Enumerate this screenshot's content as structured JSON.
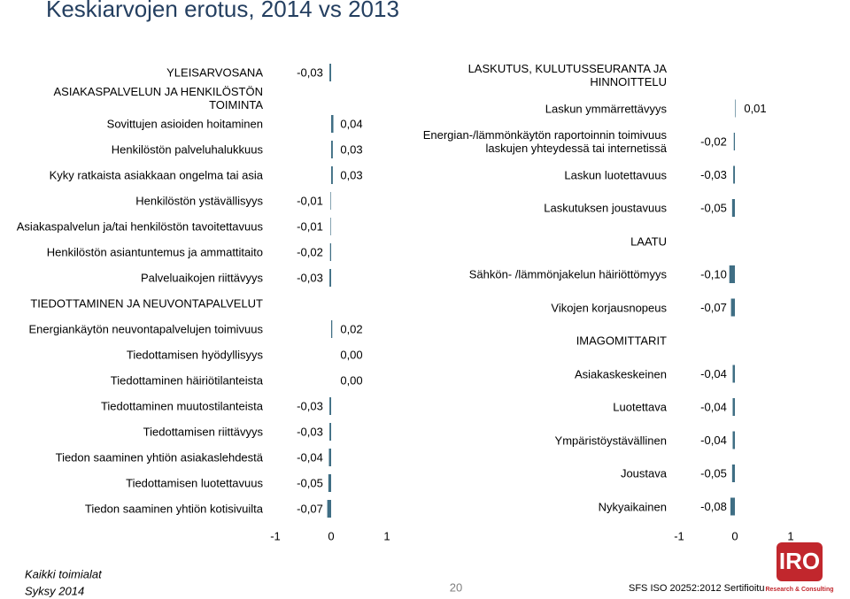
{
  "page_title": "Keskiarvojen erotus, 2014 vs 2013",
  "chart_data": [
    {
      "type": "bar",
      "orientation": "horizontal",
      "color": "#3f6e84",
      "categories": [
        "YLEISARVOSANA",
        "ASIAKASPALVELUN JA HENKILÖSTÖN TOIMINTA",
        "Sovittujen asioiden hoitaminen",
        "Henkilöstön palveluhalukkuus",
        "Kyky ratkaista asiakkaan ongelma tai asia",
        "Henkilöstön ystävällisyys",
        "Asiakaspalvelun ja/tai henkilöstön tavoitettavuus",
        "Henkilöstön asiantuntemus ja ammattitaito",
        "Palveluaikojen riittävyys",
        "TIEDOTTAMINEN JA NEUVONTAPALVELUT",
        "Energiankäytön neuvontapalvelujen toimivuus",
        "Tiedottamisen hyödyllisyys",
        "Tiedottaminen häiriötilanteista",
        "Tiedottaminen muutostilanteista",
        "Tiedottamisen riittävyys",
        "Tiedon saaminen yhtiön asiakaslehdestä",
        "Tiedottamisen luotettavuus",
        "Tiedon saaminen yhtiön kotisivuilta"
      ],
      "values": [
        -0.03,
        null,
        0.04,
        0.03,
        0.03,
        -0.01,
        -0.01,
        -0.02,
        -0.03,
        null,
        0.02,
        0.0,
        0.0,
        -0.03,
        -0.03,
        -0.04,
        -0.05,
        -0.07
      ],
      "value_labels": [
        "-0,03",
        null,
        "0,04",
        "0,03",
        "0,03",
        "-0,01",
        "-0,01",
        "-0,02",
        "-0,03",
        null,
        "0,02",
        "0,00",
        "0,00",
        "-0,03",
        "-0,03",
        "-0,04",
        "-0,05",
        "-0,07"
      ],
      "xlim": [
        -1,
        1
      ],
      "xticks": [
        -1,
        0,
        1
      ]
    },
    {
      "type": "bar",
      "orientation": "horizontal",
      "color": "#3f6e84",
      "categories": [
        "LASKUTUS, KULUTUSSEURANTA JA HINNOITTELU",
        "Laskun ymmärrettävyys",
        "Energian-/lämmönkäytön raportoinnin toimivuus laskujen yhteydessä tai internetissä",
        "Laskun luotettavuus",
        "Laskutuksen joustavuus",
        "LAATU",
        "Sähkön- /lämmönjakelun häiriöttömyys",
        "Vikojen korjausnopeus",
        "IMAGOMITTARIT",
        "Asiakaskeskeinen",
        "Luotettava",
        "Ympäristöystävällinen",
        "Joustava",
        "Nykyaikainen"
      ],
      "values": [
        null,
        0.01,
        -0.02,
        -0.03,
        -0.05,
        null,
        -0.1,
        -0.07,
        null,
        -0.04,
        -0.04,
        -0.04,
        -0.05,
        -0.08
      ],
      "value_labels": [
        null,
        "0,01",
        "-0,02",
        "-0,03",
        "-0,05",
        null,
        "-0,10",
        "-0,07",
        null,
        "-0,04",
        "-0,04",
        "-0,04",
        "-0,05",
        "-0,08"
      ],
      "xlim": [
        -1,
        1
      ],
      "xticks": [
        -1,
        0,
        1
      ]
    }
  ],
  "footer": {
    "lines": [
      "Kaikki toimialat",
      "Syksy 2014"
    ],
    "page_number": "20",
    "certification": "SFS ISO 20252:2012 Sertifioitu",
    "logo": {
      "text": "IRO",
      "subtext": "Research & Consulting"
    }
  }
}
